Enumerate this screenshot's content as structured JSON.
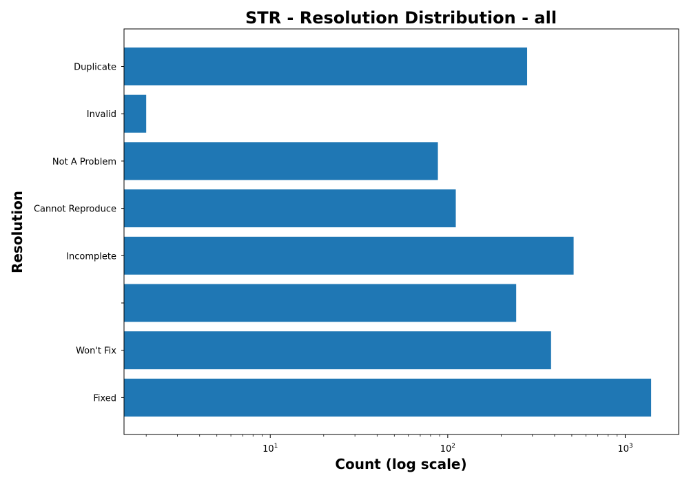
{
  "chart_data": {
    "type": "bar",
    "orientation": "horizontal",
    "title": "STR - Resolution Distribution - all",
    "xlabel": "Count (log scale)",
    "ylabel": "Resolution",
    "x_scale": "log",
    "xlim": [
      1.5,
      2000
    ],
    "x_ticks": [
      {
        "value": 10,
        "base": "10",
        "exp": "1"
      },
      {
        "value": 100,
        "base": "10",
        "exp": "2"
      },
      {
        "value": 1000,
        "base": "10",
        "exp": "3"
      }
    ],
    "categories": [
      "Duplicate",
      "Invalid",
      "Not A Problem",
      "Cannot Reproduce",
      "Incomplete",
      "",
      "Won't Fix",
      "Fixed"
    ],
    "values": [
      280,
      2,
      88,
      111,
      512,
      243,
      382,
      1400
    ],
    "colors": {
      "bar": "#1f77b4"
    },
    "grid": false,
    "legend": "none"
  }
}
